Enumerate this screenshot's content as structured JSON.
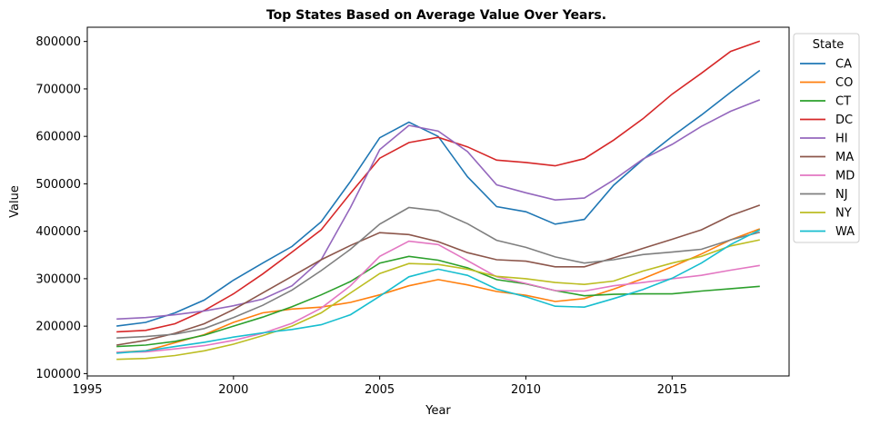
{
  "chart_data": {
    "type": "line",
    "title": "Top States Based on Average Value Over Years.",
    "xlabel": "Year",
    "ylabel": "Value",
    "xlim": [
      1995,
      2019
    ],
    "ylim": [
      95000,
      830000
    ],
    "xticks": [
      1995,
      2000,
      2005,
      2010,
      2015
    ],
    "yticks": [
      100000,
      200000,
      300000,
      400000,
      500000,
      600000,
      700000,
      800000
    ],
    "grid": false,
    "legend_title": "State",
    "legend_position": "upper right outside",
    "x": [
      1996,
      1997,
      1998,
      1999,
      2000,
      2001,
      2002,
      2003,
      2004,
      2005,
      2006,
      2007,
      2008,
      2009,
      2010,
      2011,
      2012,
      2013,
      2014,
      2015,
      2016,
      2017,
      2018
    ],
    "series": [
      {
        "name": "CA",
        "color": "#1f77b4",
        "values": [
          200000,
          208000,
          228000,
          255000,
          297000,
          333000,
          368000,
          420000,
          505000,
          597000,
          630000,
          600000,
          515000,
          452000,
          441000,
          415000,
          425000,
          497000,
          551000,
          600000,
          645000,
          693000,
          739000
        ]
      },
      {
        "name": "CO",
        "color": "#ff7f0e",
        "values": [
          145000,
          148000,
          165000,
          182000,
          208000,
          228000,
          236000,
          240000,
          250000,
          266000,
          285000,
          298000,
          287000,
          273000,
          265000,
          252000,
          258000,
          278000,
          300000,
          325000,
          352000,
          382000,
          405000
        ]
      },
      {
        "name": "CT",
        "color": "#2ca02c",
        "values": [
          157000,
          160000,
          168000,
          181000,
          200000,
          219000,
          241000,
          266000,
          294000,
          333000,
          347000,
          339000,
          323000,
          298000,
          289000,
          275000,
          264000,
          267000,
          268000,
          268000,
          274000,
          279000,
          284000
        ]
      },
      {
        "name": "DC",
        "color": "#d62728",
        "values": [
          188000,
          191000,
          205000,
          233000,
          268000,
          310000,
          356000,
          403000,
          480000,
          554000,
          587000,
          598000,
          578000,
          550000,
          545000,
          538000,
          553000,
          592000,
          637000,
          689000,
          733000,
          779000,
          801000
        ]
      },
      {
        "name": "HI",
        "color": "#9467bd",
        "values": [
          215000,
          218000,
          224000,
          232000,
          243000,
          257000,
          285000,
          340000,
          450000,
          572000,
          623000,
          611000,
          568000,
          498000,
          481000,
          466000,
          470000,
          508000,
          552000,
          583000,
          621000,
          653000,
          677000
        ]
      },
      {
        "name": "MA",
        "color": "#8c564b",
        "values": [
          160000,
          170000,
          185000,
          205000,
          235000,
          270000,
          305000,
          340000,
          370000,
          397000,
          393000,
          378000,
          355000,
          340000,
          337000,
          325000,
          325000,
          344000,
          364000,
          383000,
          403000,
          433000,
          455000
        ]
      },
      {
        "name": "MD",
        "color": "#e377c2",
        "values": [
          145000,
          146000,
          152000,
          159000,
          170000,
          185000,
          206000,
          238000,
          285000,
          347000,
          379000,
          372000,
          338000,
          304000,
          290000,
          275000,
          274000,
          285000,
          292000,
          300000,
          307000,
          318000,
          328000
        ]
      },
      {
        "name": "NJ",
        "color": "#7f7f7f",
        "values": [
          175000,
          178000,
          183000,
          195000,
          218000,
          244000,
          276000,
          317000,
          362000,
          415000,
          450000,
          443000,
          416000,
          381000,
          366000,
          346000,
          333000,
          340000,
          351000,
          356000,
          362000,
          382000,
          398000
        ]
      },
      {
        "name": "NY",
        "color": "#bcbd22",
        "values": [
          130000,
          132000,
          138000,
          148000,
          162000,
          180000,
          200000,
          228000,
          270000,
          311000,
          332000,
          330000,
          320000,
          305000,
          300000,
          292000,
          288000,
          295000,
          316000,
          333000,
          347000,
          369000,
          382000
        ]
      },
      {
        "name": "WA",
        "color": "#17becf",
        "values": [
          143000,
          148000,
          157000,
          166000,
          177000,
          186000,
          193000,
          203000,
          224000,
          263000,
          304000,
          320000,
          307000,
          278000,
          262000,
          242000,
          240000,
          258000,
          277000,
          301000,
          333000,
          372000,
          403000
        ]
      }
    ]
  }
}
